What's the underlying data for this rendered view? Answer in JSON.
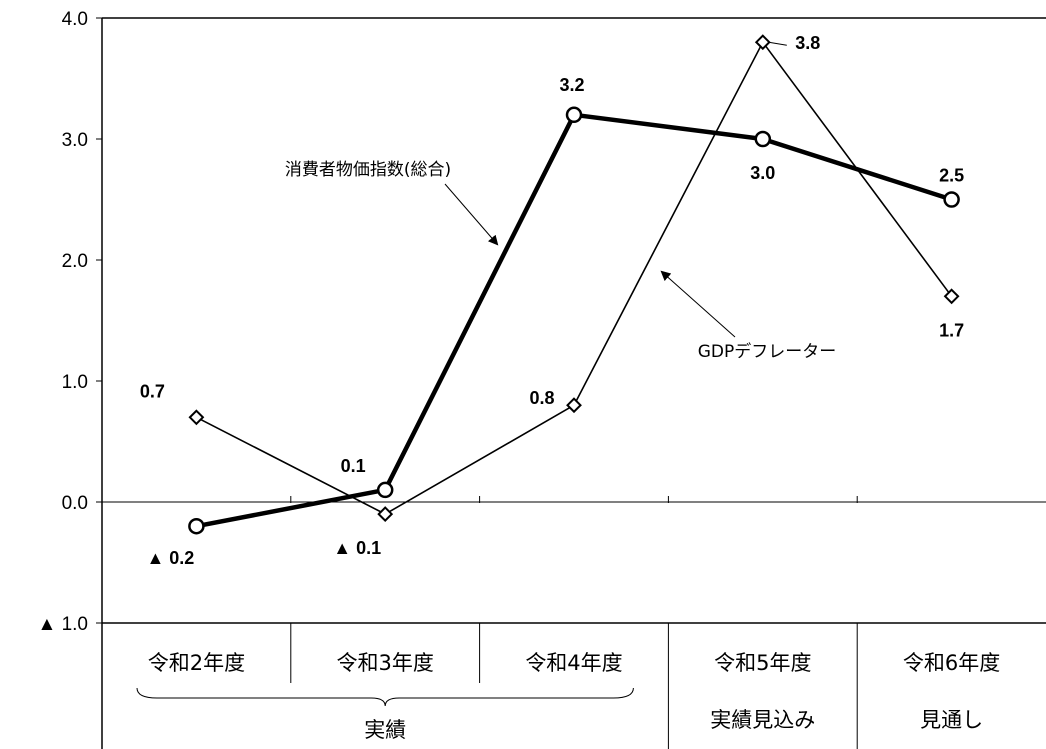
{
  "chart_data": {
    "type": "line",
    "categories": [
      "令和2年度",
      "令和3年度",
      "令和4年度",
      "令和5年度",
      "令和6年度"
    ],
    "category_groups": [
      {
        "label": "実績",
        "span": [
          0,
          2
        ]
      },
      {
        "label": "実績見込み",
        "span": [
          3,
          3
        ]
      },
      {
        "label": "見通し",
        "span": [
          4,
          4
        ]
      }
    ],
    "y_ticks": [
      {
        "value": 4.0,
        "label": "4.0"
      },
      {
        "value": 3.0,
        "label": "3.0"
      },
      {
        "value": 2.0,
        "label": "2.0"
      },
      {
        "value": 1.0,
        "label": "1.0"
      },
      {
        "value": 0.0,
        "label": "0.0"
      },
      {
        "value": -1.0,
        "label": "▲ 1.0"
      }
    ],
    "ylim": [
      -1.0,
      4.0
    ],
    "series": [
      {
        "name": "消費者物価指数(総合)",
        "marker": "circle",
        "values": [
          -0.2,
          0.1,
          3.2,
          3.0,
          2.5
        ],
        "labels": [
          "▲ 0.2",
          "0.1",
          "3.2",
          "3.0",
          "2.5"
        ]
      },
      {
        "name": "GDPデフレーター",
        "marker": "diamond",
        "values": [
          0.7,
          -0.1,
          0.8,
          3.8,
          1.7
        ],
        "labels": [
          "0.7",
          "▲ 0.1",
          "0.8",
          "3.8",
          "1.7"
        ]
      }
    ],
    "annotations": [
      "消費者物価指数(総合)",
      "GDPデフレーター"
    ],
    "grid": false
  }
}
